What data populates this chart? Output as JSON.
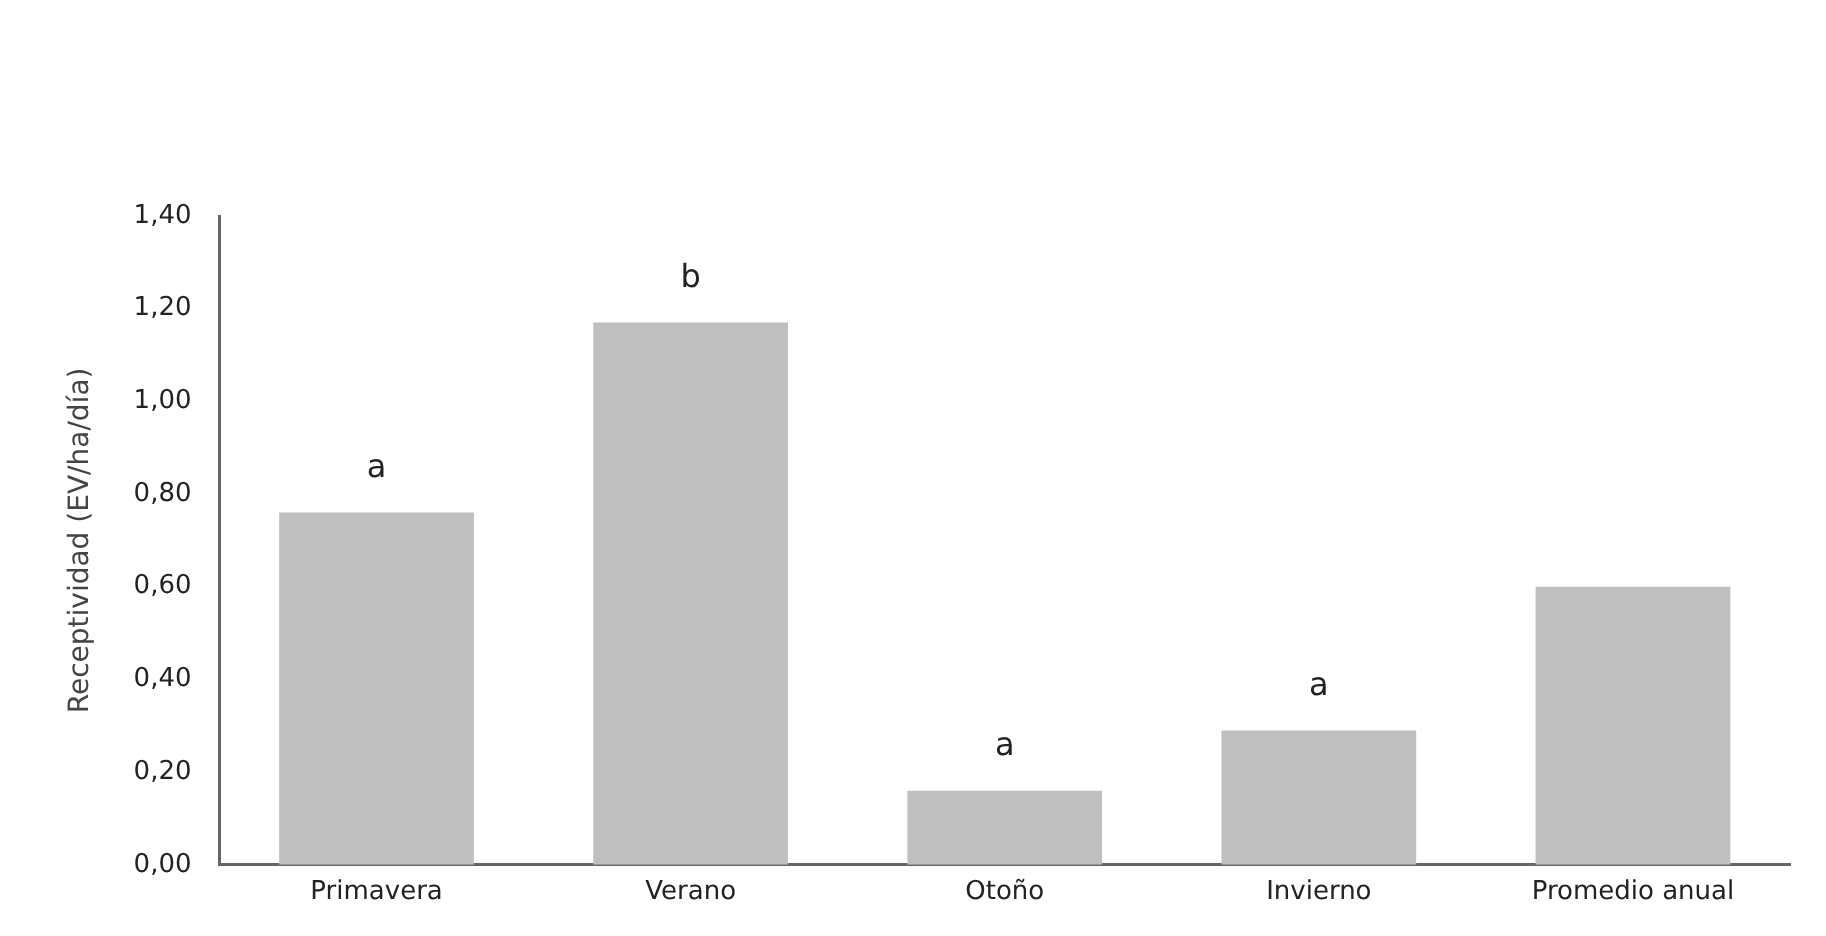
{
  "chart_data": {
    "type": "bar",
    "ylabel": "Receptividad (EV/ha/día)",
    "categories": [
      "Primavera",
      "Verano",
      "Otoño",
      "Invierno",
      "Promedio anual"
    ],
    "values": [
      0.76,
      1.17,
      0.16,
      0.29,
      0.6
    ],
    "color": "#bfbfbf",
    "ylim": [
      0,
      1.4
    ],
    "yticks": [
      {
        "value": 0,
        "label": "0,00"
      },
      {
        "value": 0.2,
        "label": "0,20"
      },
      {
        "value": 0.4,
        "label": "0,40"
      },
      {
        "value": 0.6,
        "label": "0,60"
      },
      {
        "value": 0.8,
        "label": "0,80"
      },
      {
        "value": 1.0,
        "label": "1,00"
      },
      {
        "value": 1.2,
        "label": "1,20"
      },
      {
        "value": 1.4,
        "label": "1,40"
      }
    ],
    "grid": false,
    "legend": false,
    "annotations": [
      {
        "text": "a",
        "x": "Primavera",
        "y": 0.76
      },
      {
        "text": "b",
        "x": "Verano",
        "y": 1.17
      },
      {
        "text": "a",
        "x": "Otoño",
        "y": 0.16
      },
      {
        "text": "a",
        "x": "Invierno",
        "y": 0.29
      }
    ]
  }
}
